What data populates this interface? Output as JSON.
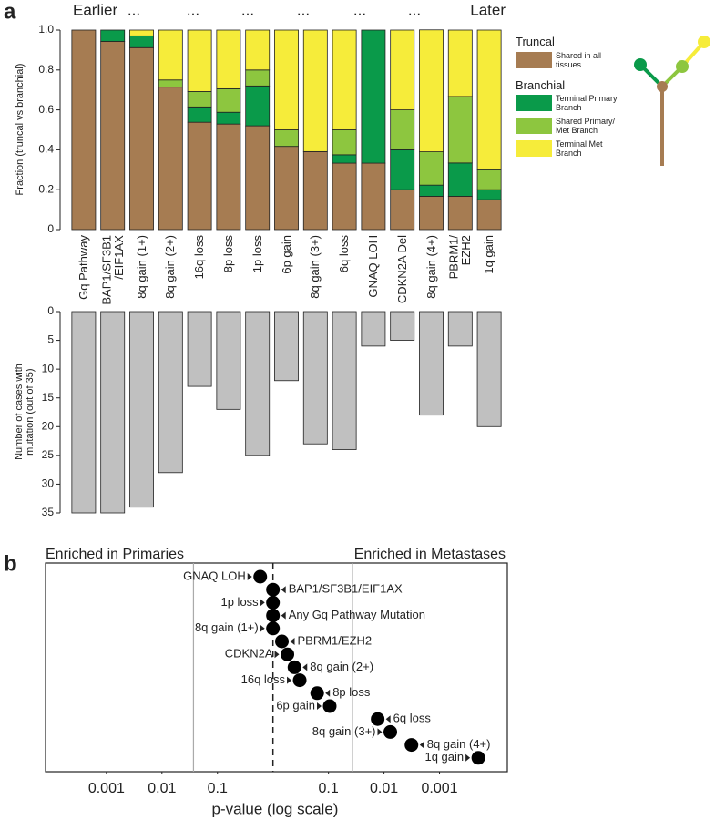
{
  "panel_labels": [
    "a",
    "b"
  ],
  "chart_data": [
    {
      "type": "stacked_bar",
      "annotations": [
        "Earlier",
        "...",
        "...",
        "...",
        "...",
        "...",
        "...",
        "Later"
      ],
      "y_label": "Fraction (truncal vs branchial)",
      "categories": [
        "Gq Pathway",
        "BAP1/SF3B1\n/EIF1AX",
        "8q gain (1+)",
        "8q gain (2+)",
        "16q loss",
        "8p loss",
        "1p loss",
        "6p gain",
        "8q gain (3+)",
        "6q loss",
        "GNAQ LOH",
        "CDKN2A Del",
        "8q gain (4+)",
        "PBRM1/\nEZH2",
        "1q gain"
      ],
      "legend_titles": [
        "Truncal",
        "Branchial"
      ],
      "series": [
        {
          "name": "Shared in all\ntissues",
          "color": "#a67c52",
          "values": [
            1,
            0.943,
            0.912,
            0.714,
            0.538,
            0.529,
            0.52,
            0.417,
            0.391,
            0.333,
            0.333,
            0.2,
            0.167,
            0.167,
            0.15
          ]
        },
        {
          "name": "Terminal Primary\nBranch",
          "color": "#0a9a4a",
          "values": [
            0,
            0.057,
            0.059,
            0,
            0.077,
            0.059,
            0.2,
            0,
            0,
            0.042,
            0.667,
            0.2,
            0.056,
            0.167,
            0.05
          ]
        },
        {
          "name": "Shared Primary/\nMet Branch",
          "color": "#8dc63f",
          "values": [
            0,
            0,
            0,
            0.036,
            0.077,
            0.118,
            0.08,
            0.083,
            0,
            0.125,
            0,
            0.2,
            0.167,
            0.333,
            0.1
          ]
        },
        {
          "name": "Terminal Met\nBranch",
          "color": "#f6ec3a",
          "values": [
            0,
            0,
            0.029,
            0.25,
            0.308,
            0.294,
            0.2,
            0.5,
            0.609,
            0.5,
            0,
            0.4,
            0.611,
            0.333,
            0.7
          ]
        }
      ],
      "ylim": [
        0,
        1
      ],
      "yticks": [
        0,
        0.2,
        0.4,
        0.6,
        0.8,
        {
          "value": 1,
          "label": "1.0"
        }
      ]
    },
    {
      "type": "bar",
      "y_label": "Number of cases with\nmutation (out of 35)",
      "values": [
        35,
        35,
        34,
        28,
        13,
        17,
        25,
        12,
        23,
        24,
        6,
        5,
        18,
        6,
        20
      ],
      "color": "#c0c0c0",
      "ylim": [
        0,
        35
      ],
      "inverted": true,
      "yticks": [
        0,
        5,
        10,
        15,
        20,
        25,
        30,
        35
      ]
    },
    {
      "type": "dot",
      "left_title": "Enriched in Primaries",
      "right_title": "Enriched in Metastases",
      "x_label": "p-value (log scale)",
      "categories": [
        "GNAQ LOH",
        "BAP1/SF3B1/EIF1AX",
        "1p loss",
        "Any Gq Pathway Mutation",
        "8q gain (1+)",
        "PBRM1/EZH2",
        "CDKN2A",
        "8q gain (2+)",
        "16q loss",
        "8p loss",
        "6p gain",
        "6q loss",
        "8q gain (3+)",
        "8q gain (4+)",
        "1q gain"
      ],
      "values": [
        -0.59,
        1,
        1,
        1,
        1,
        0.69,
        0.55,
        0.41,
        0.33,
        0.16,
        0.095,
        0.013,
        0.0077,
        0.0032,
        0.0002
      ],
      "color": "#000000",
      "log_scale": true,
      "xlim": [
        -8e-05,
        6e-05
      ],
      "xticks": [
        {
          "value": -0.001,
          "label": "0.001"
        },
        {
          "value": -0.01,
          "label": "0.01"
        },
        {
          "value": -0.1,
          "label": "0.1"
        },
        0.1,
        0.01,
        0.001
      ],
      "dashed_line": 1,
      "reference_lines": [
        -0.037,
        0.037
      ]
    }
  ]
}
